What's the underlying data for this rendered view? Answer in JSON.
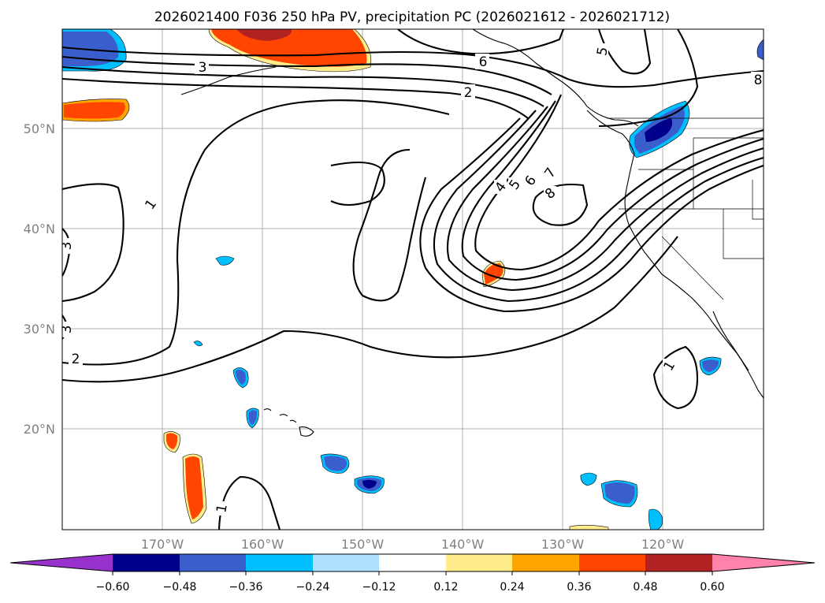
{
  "title": "2026021400 F036 250 hPa PV, precipitation PC (2026021612 - 2026021712)",
  "lat_labels": [
    "50°N",
    "40°N",
    "30°N",
    "20°N"
  ],
  "lon_labels": [
    "170°W",
    "160°W",
    "150°W",
    "140°W",
    "130°W",
    "120°W"
  ],
  "contour_labels": [
    "3",
    "6",
    "5",
    "8",
    "2",
    "1",
    "4",
    "5",
    "6",
    "7",
    "8",
    "3",
    "3",
    "2",
    "1",
    "1"
  ],
  "colorbar": {
    "ticks": [
      "−0.60",
      "−0.48",
      "−0.36",
      "−0.24",
      "−0.12",
      "0.12",
      "0.24",
      "0.36",
      "0.48",
      "0.60"
    ],
    "colors": [
      "#9932cc",
      "#00008b",
      "#3a5fcd",
      "#00bfff",
      "#b0e2ff",
      "#ffffff",
      "#ffec8b",
      "#ffa500",
      "#ff4500",
      "#b22222",
      "#ff82ab"
    ]
  },
  "map_colors": {
    "neg_strong": "#00008b",
    "neg_mid": "#3a5fcd",
    "neg_weak": "#00bfff",
    "pos_weak": "#ffa500",
    "pos_mid": "#ff4500",
    "pos_strong": "#b22222"
  }
}
